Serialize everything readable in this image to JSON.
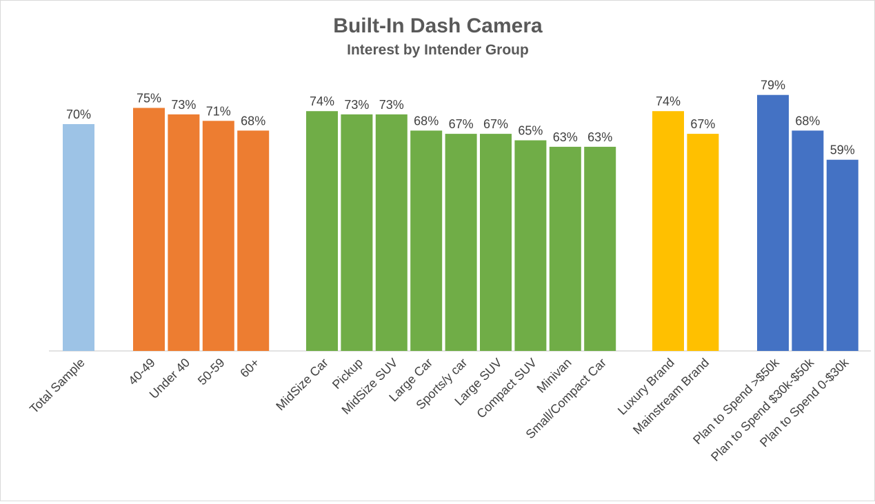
{
  "chart_data": {
    "type": "bar",
    "title": "Built-In Dash Camera",
    "subtitle": "Interest by Intender Group",
    "ylim": [
      0,
      100
    ],
    "grid": false,
    "groups": [
      {
        "color": "#9DC3E6",
        "categories": [
          "Total Sample"
        ],
        "values": [
          70
        ],
        "labels": [
          "70%"
        ]
      },
      {
        "color": "#ED7D31",
        "categories": [
          "40-49",
          "Under 40",
          "50-59",
          "60+"
        ],
        "values": [
          75,
          73,
          71,
          68
        ],
        "labels": [
          "75%",
          "73%",
          "71%",
          "68%"
        ]
      },
      {
        "color": "#70AD47",
        "categories": [
          "MidSize Car",
          "Pickup",
          "MidSize SUV",
          "Large Car",
          "Sports/y car",
          "Large SUV",
          "Compact SUV",
          "Minivan",
          "Small/Compact Car"
        ],
        "values": [
          74,
          73,
          73,
          68,
          67,
          67,
          65,
          63,
          63
        ],
        "labels": [
          "74%",
          "73%",
          "73%",
          "68%",
          "67%",
          "67%",
          "65%",
          "63%",
          "63%"
        ]
      },
      {
        "color": "#FFC000",
        "categories": [
          "Luxury Brand",
          "Mainstream Brand"
        ],
        "values": [
          74,
          67
        ],
        "labels": [
          "74%",
          "67%"
        ]
      },
      {
        "color": "#4472C4",
        "categories": [
          "Plan to Spend >$50k",
          "Plan to Spend $30k-$50k",
          "Plan to Spend 0-$30k"
        ],
        "values": [
          79,
          68,
          59
        ],
        "labels": [
          "79%",
          "68%",
          "59%"
        ]
      }
    ]
  }
}
